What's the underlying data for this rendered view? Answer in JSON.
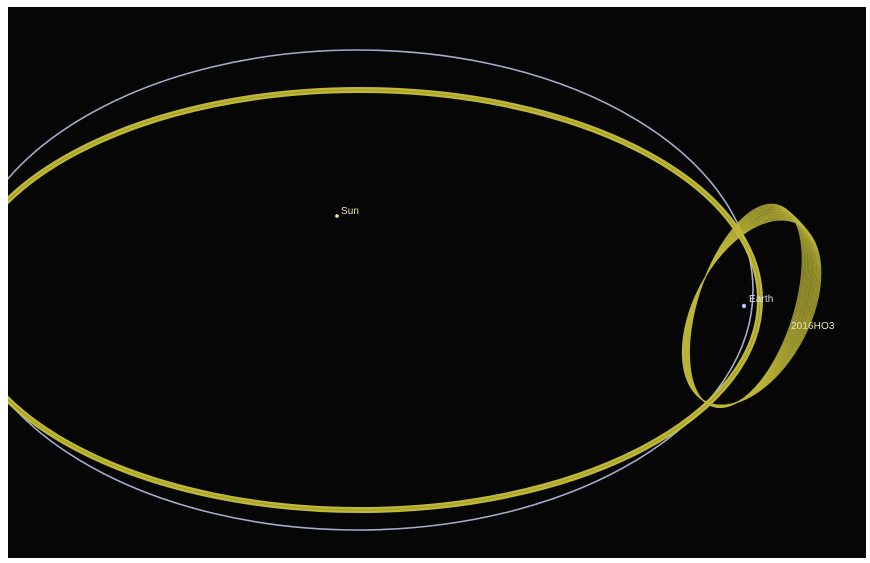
{
  "labels": {
    "sun": "Sun",
    "earth": "Earth",
    "asteroid": "2016HO3"
  },
  "colors": {
    "background": "#060606",
    "earth_orbit": "#b8bfe0",
    "asteroid_orbit": "#c9c23a",
    "asteroid_loop": "#bfb83a",
    "sun": "#f3e9a8",
    "earth": "#b9c2ee",
    "label_text": "#e8e2b8"
  }
}
